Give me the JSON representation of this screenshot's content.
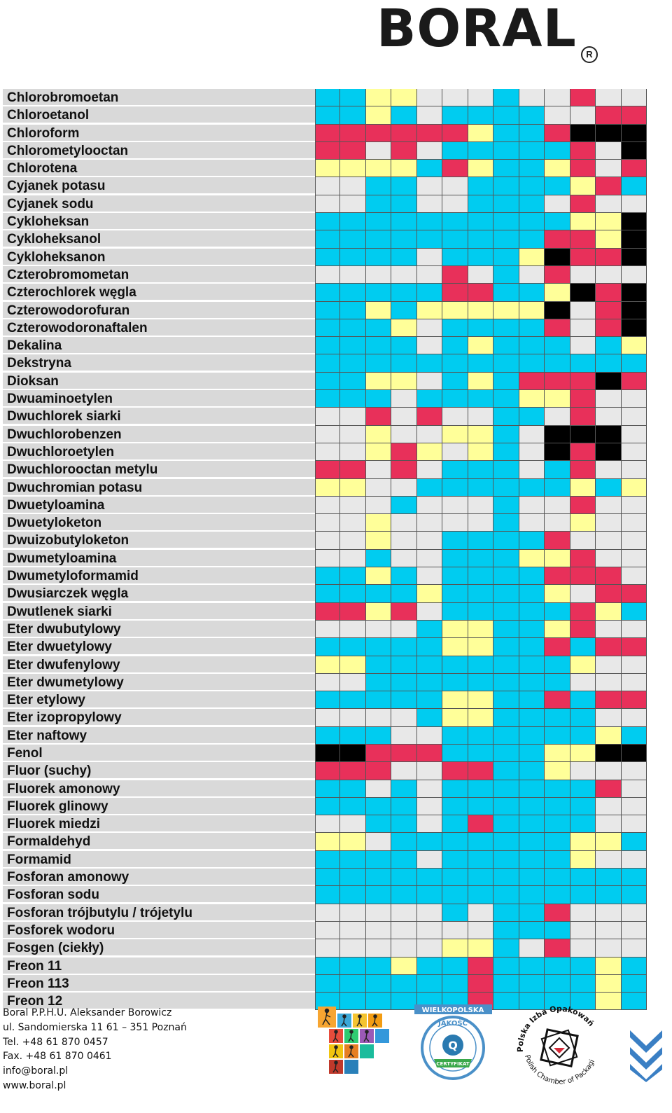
{
  "logo": {
    "text": "BORAL",
    "reg": "R"
  },
  "colors": {
    "blue": "#00ccf0",
    "yellow": "#ffff99",
    "red": "#e8305a",
    "grey": "#e8e8e8",
    "black": "#000000"
  },
  "rows": [
    {
      "name": "Chlorobromoetan",
      "cells": "bbyywwwbwwrww"
    },
    {
      "name": "Chloroetanol",
      "cells": "bbybwbbbbwwrr"
    },
    {
      "name": "Chloroform",
      "cells": "rrrrrrybbrkkk"
    },
    {
      "name": "Chlorometylooctan",
      "cells": "rrwrwbbbbbrwk"
    },
    {
      "name": "Chlorotena",
      "cells": "yyyybrybbyrwr"
    },
    {
      "name": "Cyjanek potasu",
      "cells": "wwbbwwbbbbyrb"
    },
    {
      "name": "Cyjanek sodu",
      "cells": "wwbbwwbbbwrww"
    },
    {
      "name": "Cykloheksan",
      "cells": "bbbbbbbbbbyyk"
    },
    {
      "name": "Cykloheksanol",
      "cells": "bbbbbbbbbrryk"
    },
    {
      "name": "Cykloheksanon",
      "cells": "bbbbwbbbykrrk"
    },
    {
      "name": "Czterobromometan",
      "cells": "wwwwwrwbwrwww"
    },
    {
      "name": "Czterochlorek węgla",
      "cells": "bbbbbrrbbykrk"
    },
    {
      "name": "Czterowodorofuran",
      "cells": "bbybyyyyykwrk"
    },
    {
      "name": "Czterowodoronaftalen",
      "cells": "bbbywbbbbrwrk"
    },
    {
      "name": "Dekalina",
      "cells": "bbbbwbybbbwby"
    },
    {
      "name": "Dekstryna",
      "cells": "bbbbbbbbbbbbb"
    },
    {
      "name": "Dioksan",
      "cells": "bbyywbybrrrkr"
    },
    {
      "name": "Dwuaminoetylen",
      "cells": "bbbwbbbbyyrww"
    },
    {
      "name": "Dwuchlorek siarki",
      "cells": "wwrwrwwbbwrww"
    },
    {
      "name": "Dwuchlorobenzen",
      "cells": "wwywwyybwkkkw"
    },
    {
      "name": "Dwuchloroetylen",
      "cells": "wwyrysybwkrkw"
    },
    {
      "name": "Dwuchlorooctan metylu",
      "cells": "rrwrwbbbwbrww"
    },
    {
      "name": "Dwuchromian potasu",
      "cells": "yywwbbbbbbyby"
    },
    {
      "name": "Dwuetyloamina",
      "cells": "wwwbwwwbwwrww"
    },
    {
      "name": "Dwuetyloketon",
      "cells": "wwywwwwbwwyww"
    },
    {
      "name": "Dwuizobutyloketon",
      "cells": "wwywwbbbbrwww"
    },
    {
      "name": "Dwumetyloamina",
      "cells": "wwbwwbbbyyrww"
    },
    {
      "name": "Dwumetyloformamid",
      "cells": "bbybwbbbbrrrw"
    },
    {
      "name": "Dwusiarczek węgla",
      "cells": "bbbbybbbbywrr"
    },
    {
      "name": "Dwutlenek siarki",
      "cells": "rryrwbbbbbryb"
    },
    {
      "name": "Eter dwubutylowy",
      "cells": "wwwwbyybbyrww"
    },
    {
      "name": "Eter dwuetylowy",
      "cells": "bbbbbyybbrbrr"
    },
    {
      "name": "Eter dwufenylowy",
      "cells": "yybbbbbbbbyww"
    },
    {
      "name": "Eter dwumetylowy",
      "cells": "wwbbbbbbbbwww"
    },
    {
      "name": "Eter etylowy",
      "cells": "bbbbbyybbrbrr"
    },
    {
      "name": "Eter izopropylowy",
      "cells": "wwwwbyybbbbww"
    },
    {
      "name": "Eter naftowy",
      "cells": "bbbwwbbbbbbyb"
    },
    {
      "name": "Fenol",
      "cells": "kkrrrbbbbyykk"
    },
    {
      "name": "Fluor (suchy)",
      "cells": "rrrwwrrbbywww"
    },
    {
      "name": "Fluorek amonowy",
      "cells": "bbwbwbbbbbbrw"
    },
    {
      "name": "Fluorek glinowy",
      "cells": "bbbbwbbbbbbww"
    },
    {
      "name": "Fluorek miedzi",
      "cells": "wwbbwbrbbbbww"
    },
    {
      "name": "Formaldehyd",
      "cells": "yywbbbbbbbyyb"
    },
    {
      "name": "Formamid",
      "cells": "bbbbwbbbbbyww"
    },
    {
      "name": "Fosforan amonowy",
      "cells": "bbbbbbbbbbbbb"
    },
    {
      "name": "Fosforan sodu",
      "cells": "bbbbbbbbbbbbb"
    },
    {
      "name": "Fosforan trójbutylu / trójetylu",
      "cells": "wwwwwbwbbrwww"
    },
    {
      "name": "Fosforek wodoru",
      "cells": "wwwwwwwbbbwww"
    },
    {
      "name": "Fosgen (ciekły)",
      "cells": "wwwwwyybwrwww"
    },
    {
      "name": "Freon 11",
      "cells": "bbbybbrbbbbyb"
    },
    {
      "name": "Freon 113",
      "cells": "bbbbbbrbbbbyb"
    },
    {
      "name": "Freon 12",
      "cells": "bbbbbbrbbbbyb"
    }
  ],
  "footer": {
    "company": "Boral P.P.H.U. Aleksander Borowicz",
    "address": "ul. Sandomierska 11 61 – 351 Poznań",
    "tel": "Tel. +48 61 870 0457",
    "fax": "Fax. +48 61 870 0461",
    "email": "info@boral.pl",
    "www": "www.boral.pl"
  },
  "badges": {
    "quality_top": "WIELKOPOLSKA",
    "quality_mid": "JAKOŚĆ",
    "quality_letter": "Q",
    "quality_ribbon": "CERTYFIKAT",
    "chamber_top": "Polska Izba Opakowań",
    "chamber_bottom": "Polish Chamber of Packaging"
  }
}
